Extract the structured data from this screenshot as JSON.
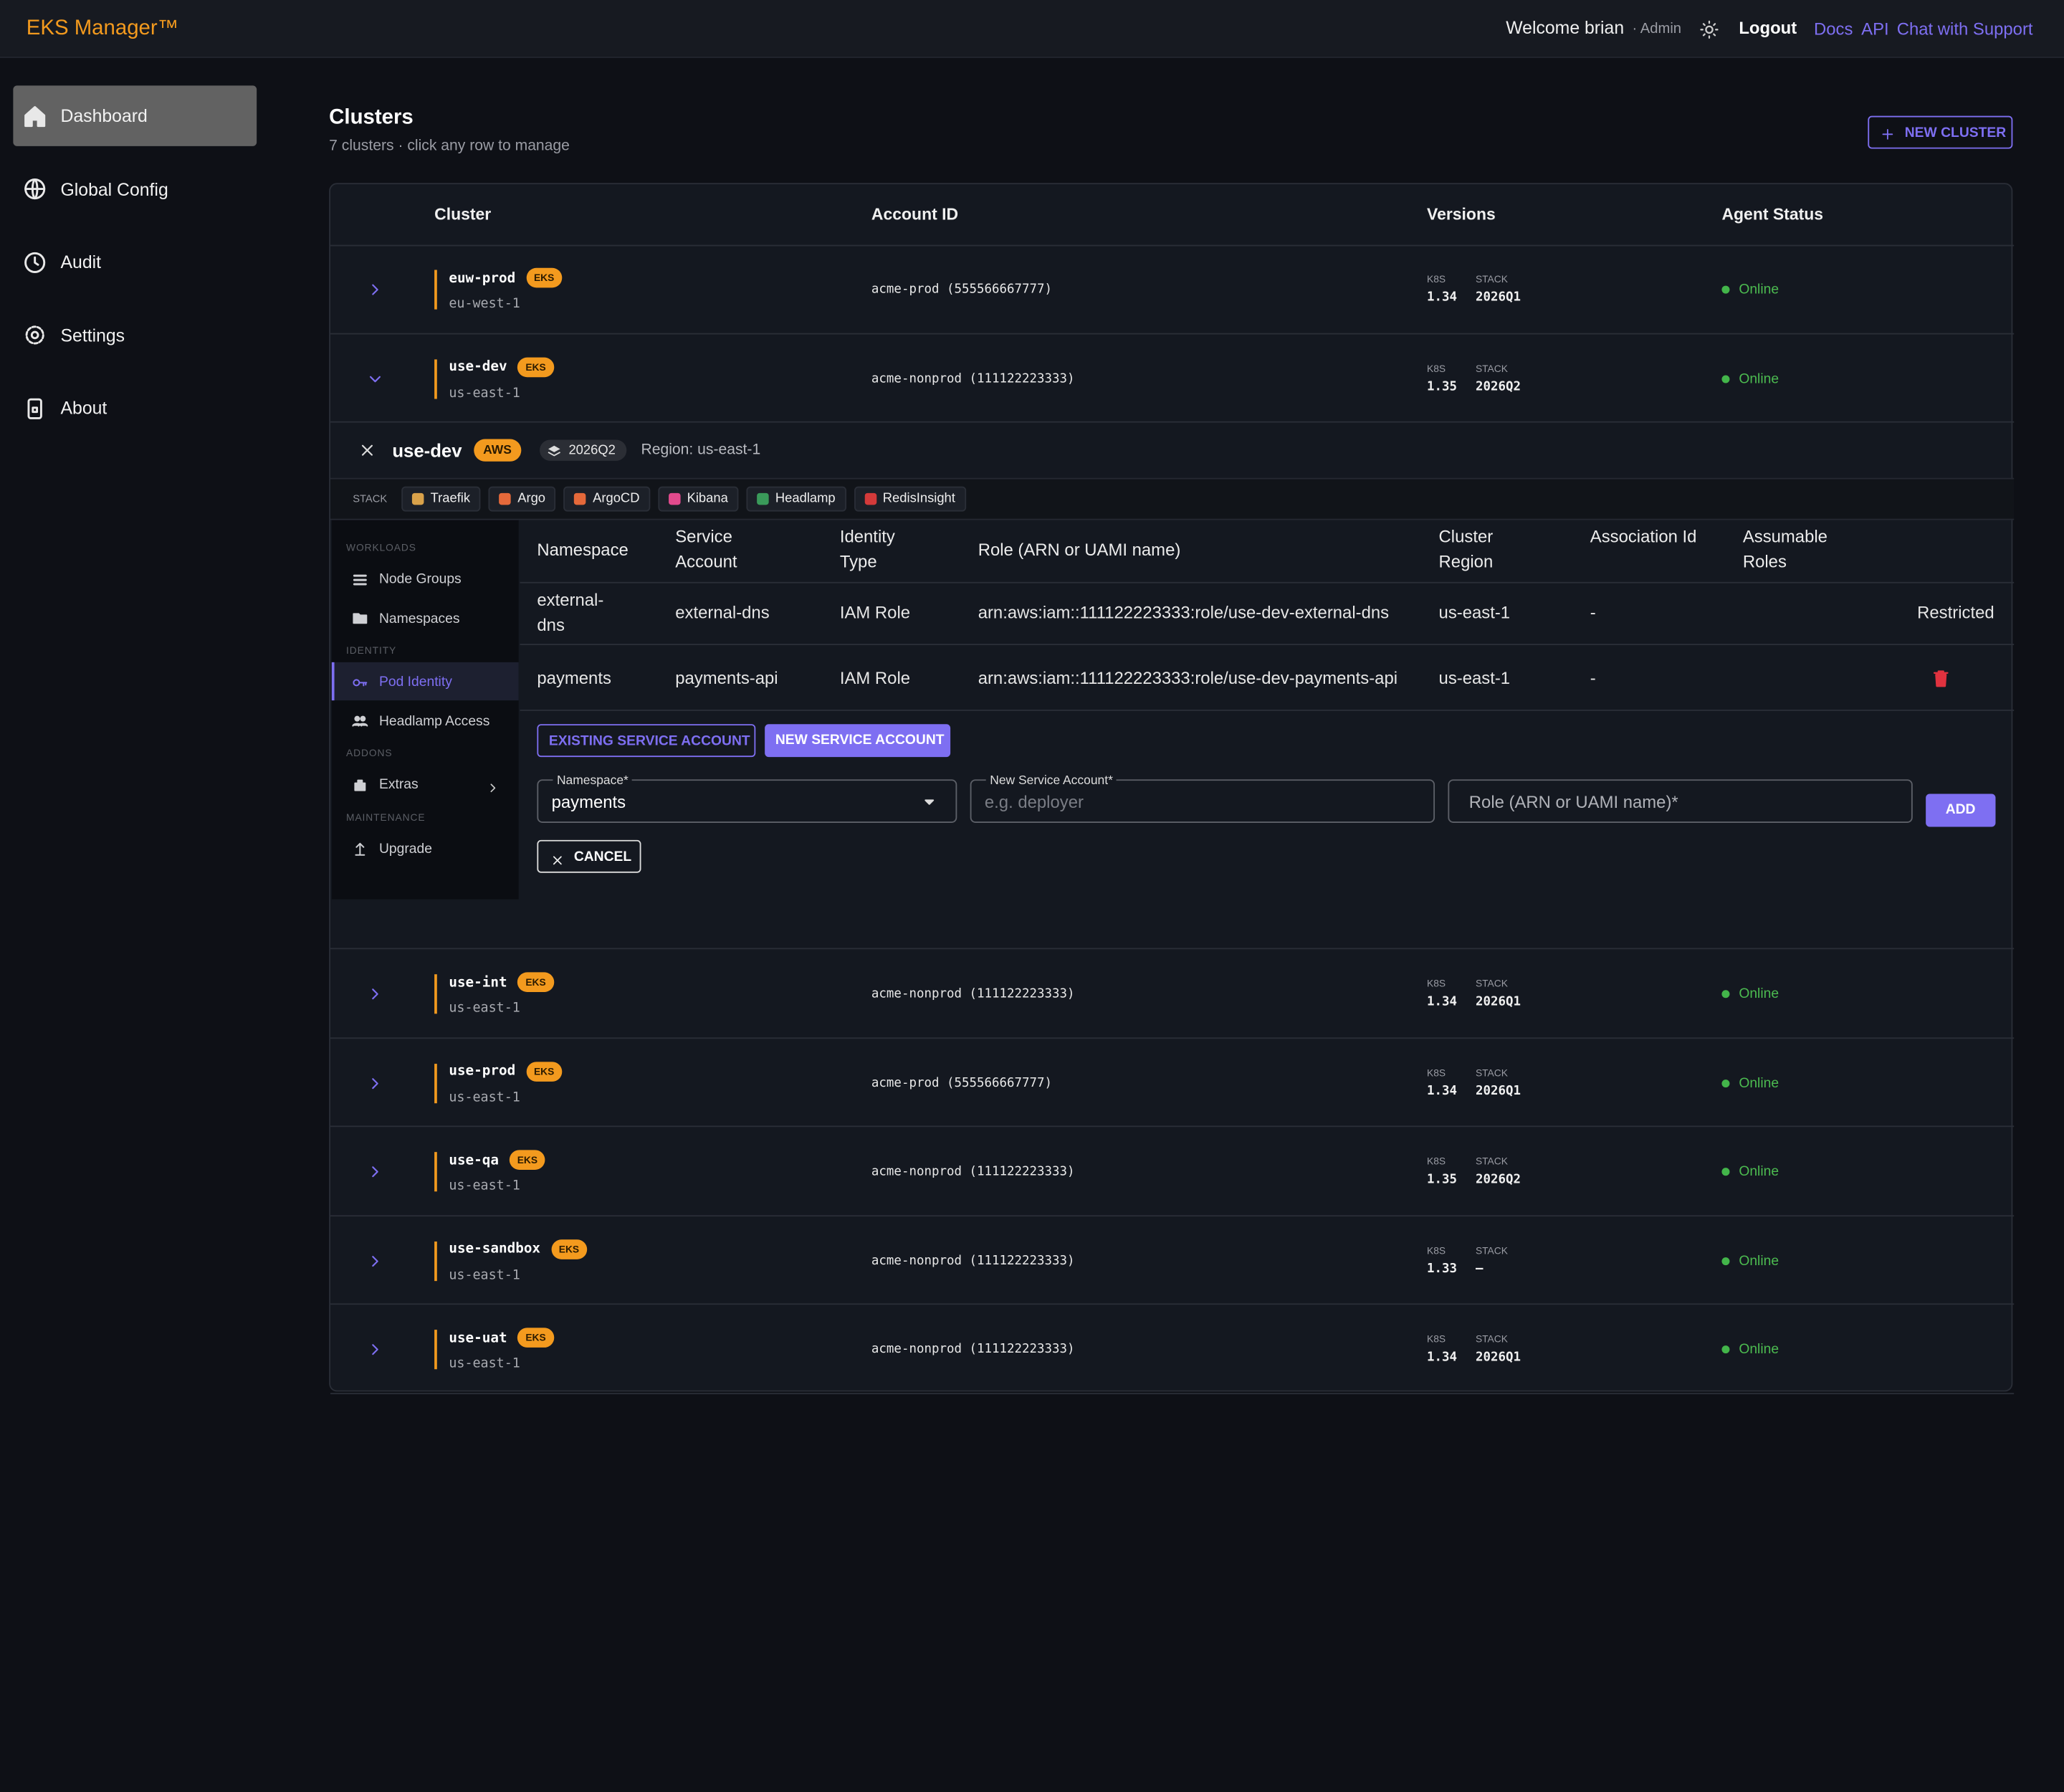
{
  "header": {
    "brand": "EKS Manager™",
    "welcome": "Welcome brian",
    "role": "· Admin",
    "logout": "Logout",
    "links": [
      "Docs",
      "API",
      "Chat with Support"
    ]
  },
  "sidebar": {
    "items": [
      "Dashboard",
      "Global Config",
      "Audit",
      "Settings",
      "About"
    ]
  },
  "page": {
    "title": "Clusters",
    "subtitle": "7 clusters · click any row to manage",
    "new_cluster": "NEW CLUSTER"
  },
  "table": {
    "columns": [
      "Cluster",
      "Account ID",
      "Versions",
      "Agent Status"
    ],
    "badge": "EKS",
    "k8s_label": "K8S",
    "stack_label": "STACK",
    "rows": [
      {
        "name": "euw-prod",
        "region": "eu-west-1",
        "account": "acme-prod (555566667777)",
        "k8s": "1.34",
        "stack": "2026Q1",
        "status": "Online"
      },
      {
        "name": "use-dev",
        "region": "us-east-1",
        "account": "acme-nonprod (111122223333)",
        "k8s": "1.35",
        "stack": "2026Q2",
        "status": "Online"
      },
      {
        "name": "use-int",
        "region": "us-east-1",
        "account": "acme-nonprod (111122223333)",
        "k8s": "1.34",
        "stack": "2026Q1",
        "status": "Online"
      },
      {
        "name": "use-prod",
        "region": "us-east-1",
        "account": "acme-prod (555566667777)",
        "k8s": "1.34",
        "stack": "2026Q1",
        "status": "Online"
      },
      {
        "name": "use-qa",
        "region": "us-east-1",
        "account": "acme-nonprod (111122223333)",
        "k8s": "1.35",
        "stack": "2026Q2",
        "status": "Online"
      },
      {
        "name": "use-sandbox",
        "region": "us-east-1",
        "account": "acme-nonprod (111122223333)",
        "k8s": "1.33",
        "stack": "–",
        "status": "Online"
      },
      {
        "name": "use-uat",
        "region": "us-east-1",
        "account": "acme-nonprod (111122223333)",
        "k8s": "1.34",
        "stack": "2026Q1",
        "status": "Online"
      }
    ]
  },
  "detail": {
    "name": "use-dev",
    "provider": "AWS",
    "stack_version": "2026Q2",
    "region": "Region: us-east-1",
    "stack_label": "STACK",
    "stack_apps": [
      "Traefik",
      "Argo",
      "ArgoCD",
      "Kibana",
      "Headlamp",
      "RedisInsight"
    ],
    "nav": [
      {
        "section": "WORKLOADS",
        "items": [
          "Node Groups",
          "Namespaces"
        ]
      },
      {
        "section": "IDENTITY",
        "items": [
          "Pod Identity",
          "Headlamp Access"
        ]
      },
      {
        "section": "ADDONS",
        "items": [
          "Extras"
        ]
      },
      {
        "section": "MAINTENANCE",
        "items": [
          "Upgrade"
        ]
      }
    ],
    "identity_table": {
      "columns": [
        "Namespace",
        "Service Account",
        "Identity Type",
        "Role (ARN or UAMI name)",
        "Cluster Region",
        "Association Id",
        "Assumable Roles"
      ],
      "rows": [
        {
          "namespace": "external-dns",
          "service_account": "external-dns",
          "identity_type": "IAM Role",
          "role": "arn:aws:iam::111122223333:role/use-dev-external-dns",
          "region": "us-east-1",
          "association_id": "-",
          "access": "Restricted"
        },
        {
          "namespace": "payments",
          "service_account": "payments-api",
          "identity_type": "IAM Role",
          "role": "arn:aws:iam::111122223333:role/use-dev-payments-api",
          "region": "us-east-1",
          "association_id": "-"
        }
      ]
    },
    "form": {
      "modes": [
        "EXISTING SERVICE ACCOUNT",
        "NEW SERVICE ACCOUNT"
      ],
      "namespace_label": "Namespace*",
      "namespace_value": "payments",
      "sa_label": "New Service Account*",
      "sa_placeholder": "e.g. deployer",
      "role_placeholder": "Role (ARN or UAMI name)*",
      "add": "ADD",
      "cancel": "CANCEL"
    }
  }
}
